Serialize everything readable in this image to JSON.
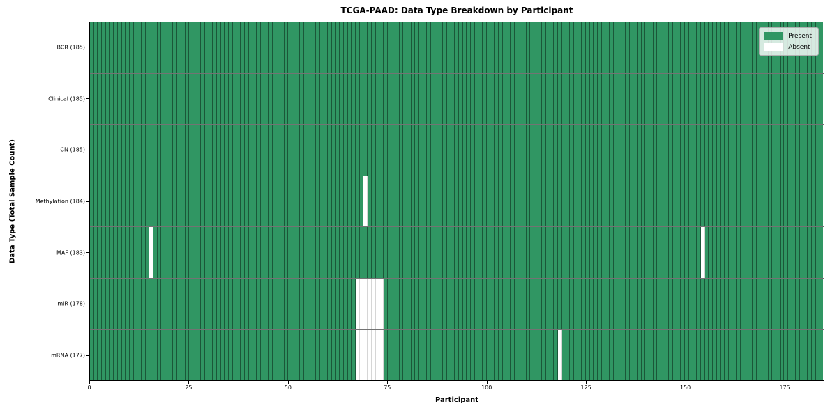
{
  "chart_data": {
    "type": "heatmap",
    "title": "TCGA-PAAD: Data Type Breakdown by Participant",
    "xlabel": "Participant",
    "ylabel": "Data Type (Total Sample Count)",
    "n_participants": 185,
    "x_axis_range": [
      0,
      185
    ],
    "x_ticks": [
      0,
      25,
      50,
      75,
      100,
      125,
      150,
      175
    ],
    "grid": "per-cell outlines",
    "legend_position": "upper right",
    "legend": [
      {
        "label": "Present",
        "key": "present"
      },
      {
        "label": "Absent",
        "key": "absent"
      }
    ],
    "colors": {
      "present": "#309663",
      "absent": "#ffffff"
    },
    "rows": [
      {
        "label": "BCR (185)",
        "data_type": "BCR",
        "total_samples": 185,
        "absent_participants": []
      },
      {
        "label": "Clinical (185)",
        "data_type": "Clinical",
        "total_samples": 185,
        "absent_participants": []
      },
      {
        "label": "CN (185)",
        "data_type": "CN",
        "total_samples": 185,
        "absent_participants": []
      },
      {
        "label": "Methylation (184)",
        "data_type": "Methylation",
        "total_samples": 184,
        "absent_participants": [
          69
        ]
      },
      {
        "label": "MAF (183)",
        "data_type": "MAF",
        "total_samples": 183,
        "absent_participants": [
          15,
          154
        ]
      },
      {
        "label": "miR (178)",
        "data_type": "miR",
        "total_samples": 178,
        "absent_participants": [
          67,
          68,
          69,
          70,
          71,
          72,
          73
        ]
      },
      {
        "label": "mRNA (177)",
        "data_type": "mRNA",
        "total_samples": 177,
        "absent_participants": [
          67,
          68,
          69,
          70,
          71,
          72,
          73,
          118
        ]
      }
    ]
  }
}
